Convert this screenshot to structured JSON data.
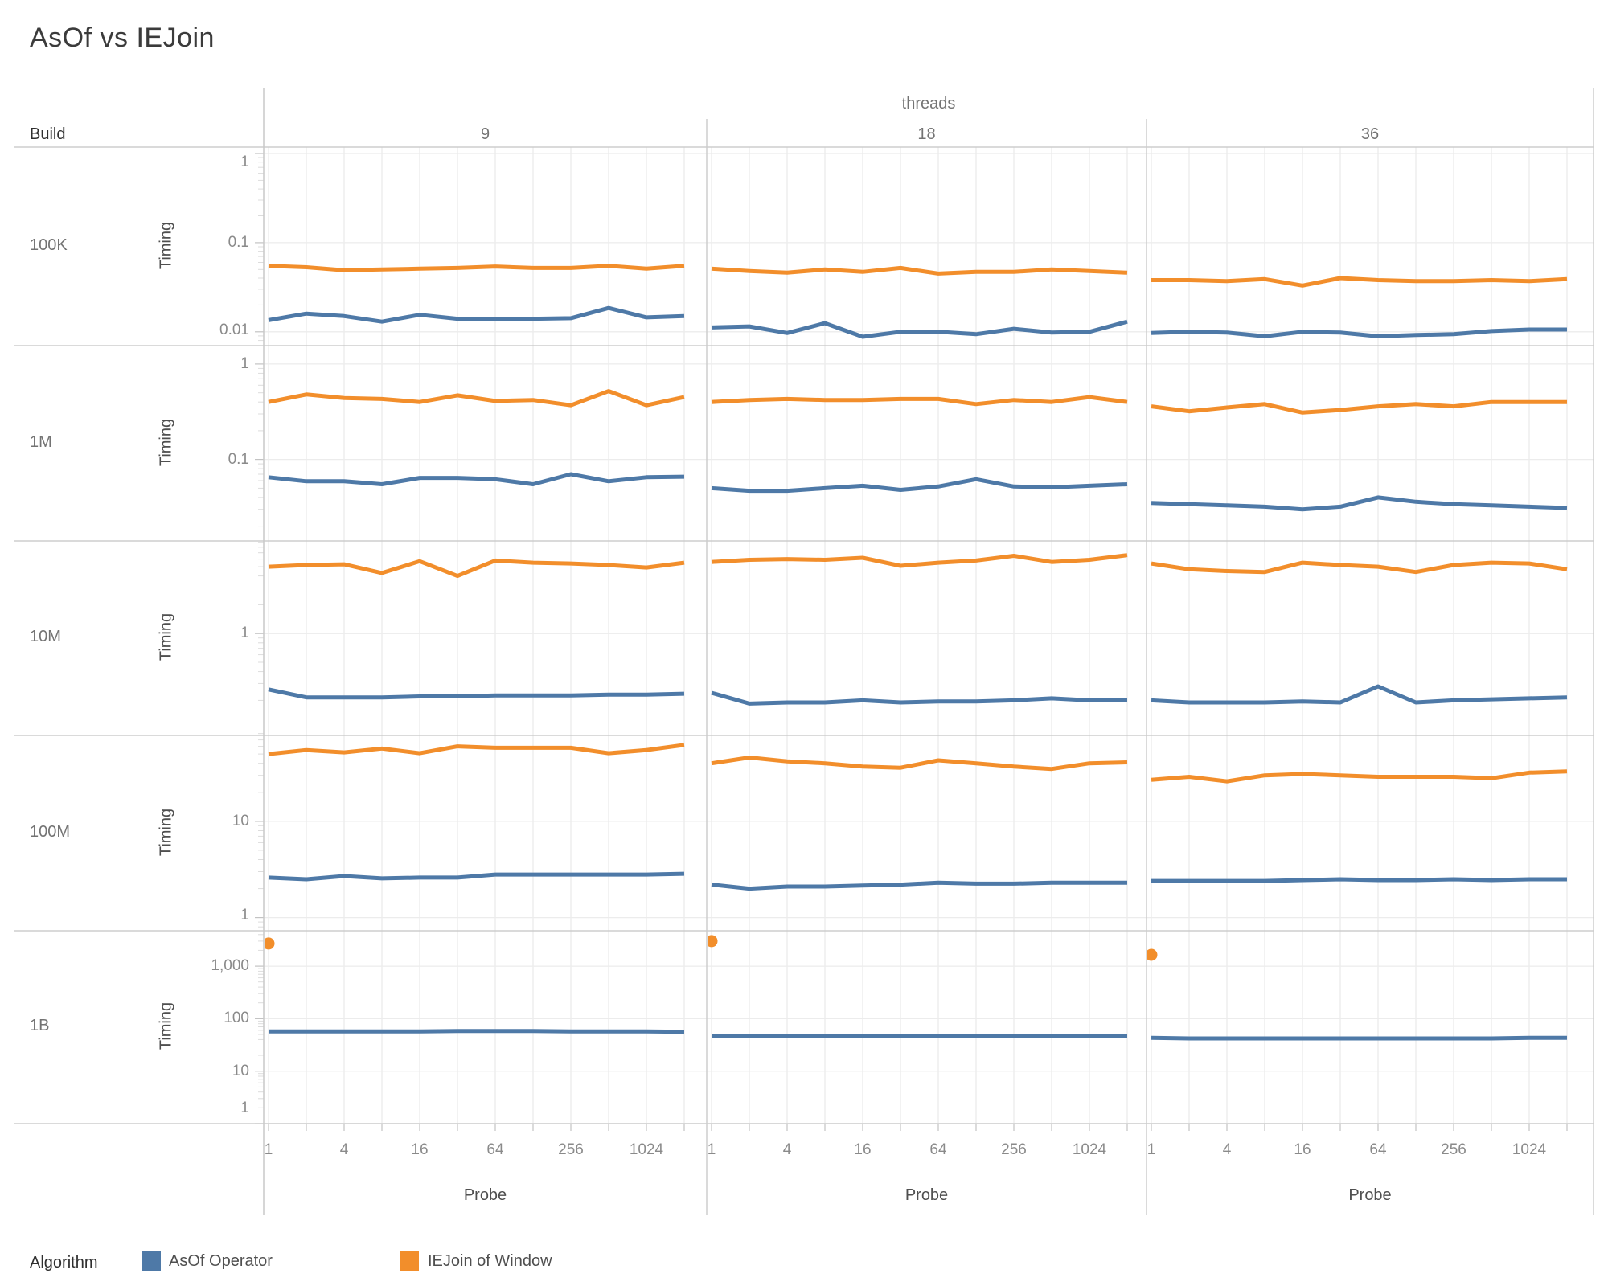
{
  "title": "AsOf vs IEJoin",
  "col_header": {
    "title": "threads",
    "values": [
      "9",
      "18",
      "36"
    ]
  },
  "row_header": {
    "title": "Build",
    "values": [
      "100K",
      "1M",
      "10M",
      "100M",
      "1B"
    ]
  },
  "axes": {
    "y_title": "Timing",
    "x_title": "Probe",
    "x_tick_labels": [
      "1",
      "4",
      "16",
      "64",
      "256",
      "1024"
    ]
  },
  "legend": {
    "title": "Algorithm",
    "entries": [
      {
        "label": "AsOf Operator",
        "color": "#4e79a7"
      },
      {
        "label": "IEJoin of Window",
        "color": "#f28e2b"
      }
    ]
  },
  "colors": {
    "asof": "#4e79a7",
    "iejoin": "#f28e2b",
    "gridline": "#ececec",
    "border": "#cdcdcd",
    "tick_mark": "#c3c3c3"
  },
  "chart_data": {
    "type": "line",
    "x_scale": "log2",
    "y_scale": "log10",
    "x": [
      1,
      2,
      4,
      8,
      16,
      32,
      64,
      128,
      256,
      512,
      1024,
      2048
    ],
    "x_labeled_ticks": [
      1,
      4,
      16,
      64,
      256,
      1024
    ],
    "columns": [
      "9",
      "18",
      "36"
    ],
    "series_names": [
      "AsOf Operator",
      "IEJoin of Window"
    ],
    "rows": [
      {
        "build": "100K",
        "y_domain": [
          0.007,
          1.18
        ],
        "y_ticks": [
          {
            "v": 1,
            "label": "1"
          },
          {
            "v": 0.1,
            "label": "0.1"
          },
          {
            "v": 0.01,
            "label": "0.01"
          }
        ],
        "panels": [
          {
            "threads": "9",
            "asof": [
              0.0135,
              0.016,
              0.015,
              0.013,
              0.0155,
              0.014,
              0.014,
              0.014,
              0.0142,
              0.0185,
              0.0145,
              0.015
            ],
            "iejoin": [
              0.055,
              0.053,
              0.049,
              0.05,
              0.051,
              0.052,
              0.054,
              0.052,
              0.052,
              0.055,
              0.051,
              0.055
            ]
          },
          {
            "threads": "18",
            "asof": [
              0.0112,
              0.0115,
              0.0097,
              0.0125,
              0.0088,
              0.01,
              0.01,
              0.0094,
              0.0108,
              0.0098,
              0.01,
              0.013
            ],
            "iejoin": [
              0.051,
              0.048,
              0.046,
              0.05,
              0.047,
              0.052,
              0.045,
              0.047,
              0.047,
              0.05,
              0.048,
              0.046
            ]
          },
          {
            "threads": "36",
            "asof": [
              0.0097,
              0.01,
              0.0098,
              0.0089,
              0.01,
              0.0098,
              0.0089,
              0.0092,
              0.0094,
              0.0102,
              0.0106,
              0.0106
            ],
            "iejoin": [
              0.038,
              0.038,
              0.037,
              0.039,
              0.033,
              0.04,
              0.038,
              0.037,
              0.037,
              0.038,
              0.037,
              0.039
            ]
          }
        ]
      },
      {
        "build": "1M",
        "y_domain": [
          0.014,
          1.56
        ],
        "y_ticks": [
          {
            "v": 1,
            "label": "1"
          },
          {
            "v": 0.1,
            "label": "0.1"
          }
        ],
        "panels": [
          {
            "threads": "9",
            "asof": [
              0.065,
              0.059,
              0.059,
              0.055,
              0.064,
              0.064,
              0.062,
              0.055,
              0.07,
              0.059,
              0.065,
              0.066
            ],
            "iejoin": [
              0.4,
              0.48,
              0.44,
              0.43,
              0.4,
              0.47,
              0.41,
              0.42,
              0.37,
              0.52,
              0.37,
              0.45
            ]
          },
          {
            "threads": "18",
            "asof": [
              0.05,
              0.047,
              0.047,
              0.05,
              0.053,
              0.048,
              0.052,
              0.062,
              0.052,
              0.051,
              0.053,
              0.055
            ],
            "iejoin": [
              0.4,
              0.42,
              0.43,
              0.42,
              0.42,
              0.43,
              0.43,
              0.38,
              0.42,
              0.4,
              0.45,
              0.4
            ]
          },
          {
            "threads": "36",
            "asof": [
              0.035,
              0.034,
              0.033,
              0.032,
              0.03,
              0.032,
              0.04,
              0.036,
              0.034,
              0.033,
              0.032,
              0.031
            ],
            "iejoin": [
              0.36,
              0.32,
              0.35,
              0.38,
              0.31,
              0.33,
              0.36,
              0.38,
              0.36,
              0.4,
              0.4,
              0.4
            ]
          }
        ]
      },
      {
        "build": "10M",
        "y_domain": [
          0.086,
          9.3
        ],
        "y_ticks": [
          {
            "v": 1,
            "label": "1"
          }
        ],
        "panels": [
          {
            "threads": "9",
            "asof": [
              0.26,
              0.215,
              0.215,
              0.215,
              0.22,
              0.22,
              0.225,
              0.225,
              0.225,
              0.23,
              0.23,
              0.235
            ],
            "iejoin": [
              5.0,
              5.2,
              5.3,
              4.3,
              5.7,
              4.0,
              5.8,
              5.5,
              5.4,
              5.2,
              4.9,
              5.5
            ]
          },
          {
            "threads": "18",
            "asof": [
              0.24,
              0.185,
              0.19,
              0.19,
              0.2,
              0.19,
              0.195,
              0.195,
              0.2,
              0.21,
              0.2,
              0.2
            ],
            "iejoin": [
              5.6,
              5.9,
              6.0,
              5.9,
              6.2,
              5.1,
              5.5,
              5.8,
              6.5,
              5.6,
              5.9,
              6.6
            ]
          },
          {
            "threads": "36",
            "asof": [
              0.2,
              0.19,
              0.19,
              0.19,
              0.195,
              0.19,
              0.28,
              0.19,
              0.2,
              0.205,
              0.21,
              0.215
            ],
            "iejoin": [
              5.4,
              4.7,
              4.5,
              4.4,
              5.5,
              5.2,
              5.0,
              4.4,
              5.2,
              5.5,
              5.4,
              4.7
            ]
          }
        ]
      },
      {
        "build": "100M",
        "y_domain": [
          0.73,
          78
        ],
        "y_ticks": [
          {
            "v": 10,
            "label": "10"
          },
          {
            "v": 1,
            "label": "1"
          }
        ],
        "panels": [
          {
            "threads": "9",
            "asof": [
              2.6,
              2.5,
              2.7,
              2.55,
              2.6,
              2.6,
              2.8,
              2.8,
              2.8,
              2.8,
              2.8,
              2.85
            ],
            "iejoin": [
              50,
              55,
              52,
              57,
              51,
              60,
              58,
              58,
              58,
              51,
              55,
              62
            ]
          },
          {
            "threads": "18",
            "asof": [
              2.2,
              2.0,
              2.1,
              2.1,
              2.15,
              2.2,
              2.3,
              2.25,
              2.25,
              2.3,
              2.3,
              2.3
            ],
            "iejoin": [
              40,
              46,
              42,
              40,
              37,
              36,
              43,
              40,
              37,
              35,
              40,
              41
            ]
          },
          {
            "threads": "36",
            "asof": [
              2.4,
              2.4,
              2.4,
              2.4,
              2.45,
              2.5,
              2.45,
              2.45,
              2.5,
              2.45,
              2.5,
              2.5
            ],
            "iejoin": [
              27,
              29,
              26,
              30,
              31,
              30,
              29,
              29,
              29,
              28,
              32,
              33
            ]
          }
        ]
      },
      {
        "build": "1B",
        "y_domain": [
          1.0,
          4730
        ],
        "y_ticks": [
          {
            "v": 1000,
            "label": "1,000"
          },
          {
            "v": 100,
            "label": "100"
          },
          {
            "v": 10,
            "label": "10"
          },
          {
            "v": 1,
            "label": "1"
          }
        ],
        "panels": [
          {
            "threads": "9",
            "asof": [
              57,
              57,
              57,
              57,
              57,
              58,
              58,
              58,
              57,
              57,
              57,
              56
            ],
            "iejoin": [
              2700,
              null,
              null,
              null,
              null,
              null,
              null,
              null,
              null,
              null,
              null,
              null
            ]
          },
          {
            "threads": "18",
            "asof": [
              46,
              46,
              46,
              46,
              46,
              46,
              47,
              47,
              47,
              47,
              47,
              47
            ],
            "iejoin": [
              3000,
              null,
              null,
              null,
              null,
              null,
              null,
              null,
              null,
              null,
              null,
              null
            ]
          },
          {
            "threads": "36",
            "asof": [
              43,
              42,
              42,
              42,
              42,
              42,
              42,
              42,
              42,
              42,
              43,
              43
            ],
            "iejoin": [
              1640,
              null,
              null,
              null,
              null,
              null,
              null,
              null,
              null,
              null,
              null,
              null
            ]
          }
        ]
      }
    ]
  }
}
